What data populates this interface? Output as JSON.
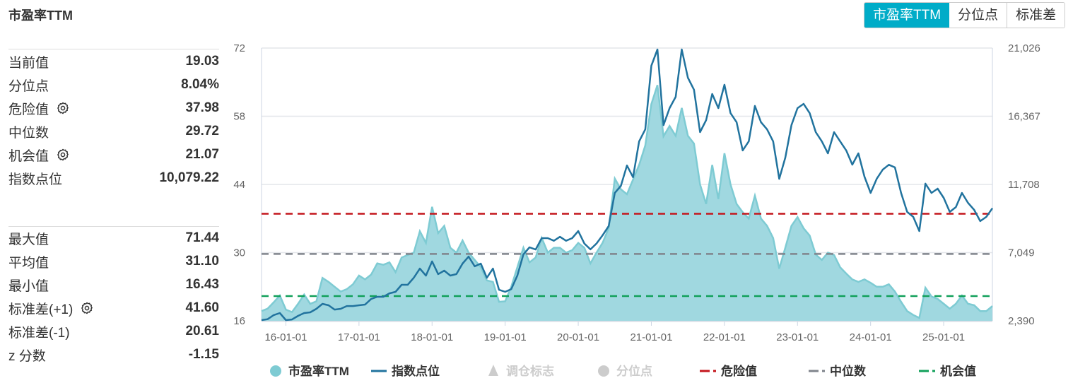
{
  "title": "市盈率TTM",
  "toggle_buttons": [
    {
      "label": "市盈率TTM",
      "active": true
    },
    {
      "label": "分位点",
      "active": false
    },
    {
      "label": "标准差",
      "active": false
    }
  ],
  "stats_top": [
    {
      "label": "当前值",
      "value": "19.03",
      "gear": false
    },
    {
      "label": "分位点",
      "value": "8.04%",
      "gear": false
    },
    {
      "label": "危险值",
      "value": "37.98",
      "gear": true
    },
    {
      "label": "中位数",
      "value": "29.72",
      "gear": false
    },
    {
      "label": "机会值",
      "value": "21.07",
      "gear": true
    },
    {
      "label": "指数点位",
      "value": "10,079.22",
      "gear": false
    }
  ],
  "stats_bottom": [
    {
      "label": "最大值",
      "value": "71.44",
      "gear": false
    },
    {
      "label": "平均值",
      "value": "31.10",
      "gear": false
    },
    {
      "label": "最小值",
      "value": "16.43",
      "gear": false
    },
    {
      "label": "标准差(+1)",
      "value": "41.60",
      "gear": true
    },
    {
      "label": "标准差(-1)",
      "value": "20.61",
      "gear": false
    },
    {
      "label": "z 分数",
      "value": "-1.15",
      "gear": false
    }
  ],
  "chart_data": {
    "type": "area",
    "grid": true,
    "legend_placement": "bottom",
    "y_left": {
      "ticks": [
        "72",
        "58",
        "44",
        "30",
        "16"
      ],
      "range": [
        16,
        72
      ]
    },
    "y_right": {
      "ticks": [
        "21,026",
        "16,367",
        "11,708",
        "7,049",
        "2,390"
      ],
      "range": [
        2390,
        21026
      ]
    },
    "x_ticks": [
      "16-01-01",
      "17-01-01",
      "18-01-01",
      "19-01-01",
      "20-01-01",
      "21-01-01",
      "22-01-01",
      "23-01-01",
      "24-01-01",
      "25-01-01"
    ],
    "x": [
      "2015-09",
      "2015-10",
      "2015-11",
      "2015-12",
      "2016-01",
      "2016-02",
      "2016-03",
      "2016-04",
      "2016-05",
      "2016-06",
      "2016-07",
      "2016-08",
      "2016-09",
      "2016-10",
      "2016-11",
      "2016-12",
      "2017-01",
      "2017-02",
      "2017-03",
      "2017-04",
      "2017-05",
      "2017-06",
      "2017-07",
      "2017-08",
      "2017-09",
      "2017-10",
      "2017-11",
      "2017-12",
      "2018-01",
      "2018-02",
      "2018-03",
      "2018-04",
      "2018-05",
      "2018-06",
      "2018-07",
      "2018-08",
      "2018-09",
      "2018-10",
      "2018-11",
      "2018-12",
      "2019-01",
      "2019-02",
      "2019-03",
      "2019-04",
      "2019-05",
      "2019-06",
      "2019-07",
      "2019-08",
      "2019-09",
      "2019-10",
      "2019-11",
      "2019-12",
      "2020-01",
      "2020-02",
      "2020-03",
      "2020-04",
      "2020-05",
      "2020-06",
      "2020-07",
      "2020-08",
      "2020-09",
      "2020-10",
      "2020-11",
      "2020-12",
      "2021-01",
      "2021-02",
      "2021-03",
      "2021-04",
      "2021-05",
      "2021-06",
      "2021-07",
      "2021-08",
      "2021-09",
      "2021-10",
      "2021-11",
      "2021-12",
      "2022-01",
      "2022-02",
      "2022-03",
      "2022-04",
      "2022-05",
      "2022-06",
      "2022-07",
      "2022-08",
      "2022-09",
      "2022-10",
      "2022-11",
      "2022-12",
      "2023-01",
      "2023-02",
      "2023-03",
      "2023-04",
      "2023-05",
      "2023-06",
      "2023-07",
      "2023-08",
      "2023-09",
      "2023-10",
      "2023-11",
      "2023-12",
      "2024-01",
      "2024-02",
      "2024-03",
      "2024-04",
      "2024-05",
      "2024-06",
      "2024-07",
      "2024-08",
      "2024-09",
      "2024-10",
      "2024-11",
      "2024-12",
      "2025-01",
      "2025-02",
      "2025-03",
      "2025-04",
      "2025-05",
      "2025-06",
      "2025-07",
      "2025-08",
      "2025-09"
    ],
    "series": [
      {
        "name": "市盈率TTM",
        "axis": "left",
        "kind": "area",
        "color": "#7ecbd3",
        "values": [
          18,
          18.5,
          19.8,
          21.2,
          18.3,
          17.8,
          19.5,
          21.4,
          19.5,
          20,
          24.8,
          24,
          23,
          22,
          22.5,
          23.5,
          25.3,
          24.5,
          25.5,
          27.8,
          27.5,
          28,
          26,
          29,
          29.5,
          30,
          34.4,
          32,
          39.4,
          34,
          35.5,
          31,
          30,
          32.5,
          30,
          28.5,
          27,
          24.3,
          24,
          19.9,
          20,
          23,
          27,
          31,
          28,
          29,
          33,
          30,
          31,
          31,
          30,
          30.5,
          32,
          31,
          27.8,
          30,
          32,
          35,
          45.2,
          43,
          42,
          45,
          48,
          52,
          60.5,
          64.4,
          53.9,
          56,
          54,
          59.7,
          54,
          52.4,
          44,
          40,
          48,
          41,
          50.4,
          44,
          40,
          38.3,
          37,
          41.7,
          37,
          35.5,
          33,
          26.7,
          31,
          35.5,
          37.3,
          35,
          33.5,
          29.6,
          28.5,
          30,
          29.5,
          27,
          25.7,
          24.5,
          24,
          24.5,
          23.8,
          23,
          23,
          23.5,
          22,
          19.9,
          18,
          17.2,
          16.6,
          22.8,
          21,
          20.5,
          19.5,
          18.5,
          19.5,
          21.2,
          19.5,
          19.2,
          18,
          18,
          19.03
        ]
      },
      {
        "name": "指数点位",
        "axis": "right",
        "kind": "line",
        "color": "#21739e",
        "values": [
          2440,
          2500,
          2780,
          2920,
          2440,
          2480,
          2730,
          2920,
          2970,
          3210,
          3550,
          3450,
          3160,
          3210,
          3400,
          3400,
          3450,
          3500,
          3880,
          4030,
          4030,
          4270,
          4370,
          4850,
          4850,
          5330,
          5960,
          5480,
          6450,
          5580,
          5820,
          5480,
          5580,
          6300,
          6780,
          6110,
          6300,
          5330,
          5960,
          4510,
          4370,
          4560,
          5480,
          6930,
          7410,
          7260,
          8040,
          8040,
          7860,
          8130,
          7860,
          8040,
          8520,
          7670,
          7270,
          7670,
          8230,
          8860,
          11130,
          11610,
          13000,
          12200,
          14650,
          15470,
          19820,
          20930,
          15760,
          16920,
          17690,
          20930,
          19000,
          18180,
          15280,
          16100,
          17890,
          16920,
          18520,
          16580,
          15960,
          14030,
          14650,
          17070,
          15960,
          15470,
          14650,
          12090,
          13540,
          15760,
          16920,
          17210,
          16580,
          15280,
          14650,
          13830,
          15280,
          14650,
          14030,
          13060,
          13830,
          12240,
          11130,
          12090,
          12720,
          13050,
          12870,
          11130,
          9830,
          9490,
          8520,
          11760,
          11130,
          11420,
          10790,
          9830,
          10160,
          11130,
          10450,
          9970,
          9200,
          9490,
          10079.22
        ]
      }
    ],
    "reference_lines": [
      {
        "name": "危险值",
        "value": 37.98,
        "color": "#c4161c"
      },
      {
        "name": "中位数",
        "value": 29.72,
        "color": "#80848c"
      },
      {
        "name": "机会值",
        "value": 21.07,
        "color": "#11a05a"
      }
    ],
    "legend": [
      {
        "label": "市盈率TTM",
        "marker": "circle",
        "color": "#7ecbd3",
        "active": true
      },
      {
        "label": "指数点位",
        "marker": "line",
        "color": "#21739e",
        "active": true
      },
      {
        "label": "调仓标志",
        "marker": "triangle",
        "color": "#cccccc",
        "active": false
      },
      {
        "label": "分位点",
        "marker": "circle",
        "color": "#cccccc",
        "active": false
      },
      {
        "label": "危险值",
        "marker": "dash",
        "color": "#c4161c",
        "active": true
      },
      {
        "label": "中位数",
        "marker": "dash",
        "color": "#80848c",
        "active": true
      },
      {
        "label": "机会值",
        "marker": "dash",
        "color": "#11a05a",
        "active": true
      }
    ]
  }
}
